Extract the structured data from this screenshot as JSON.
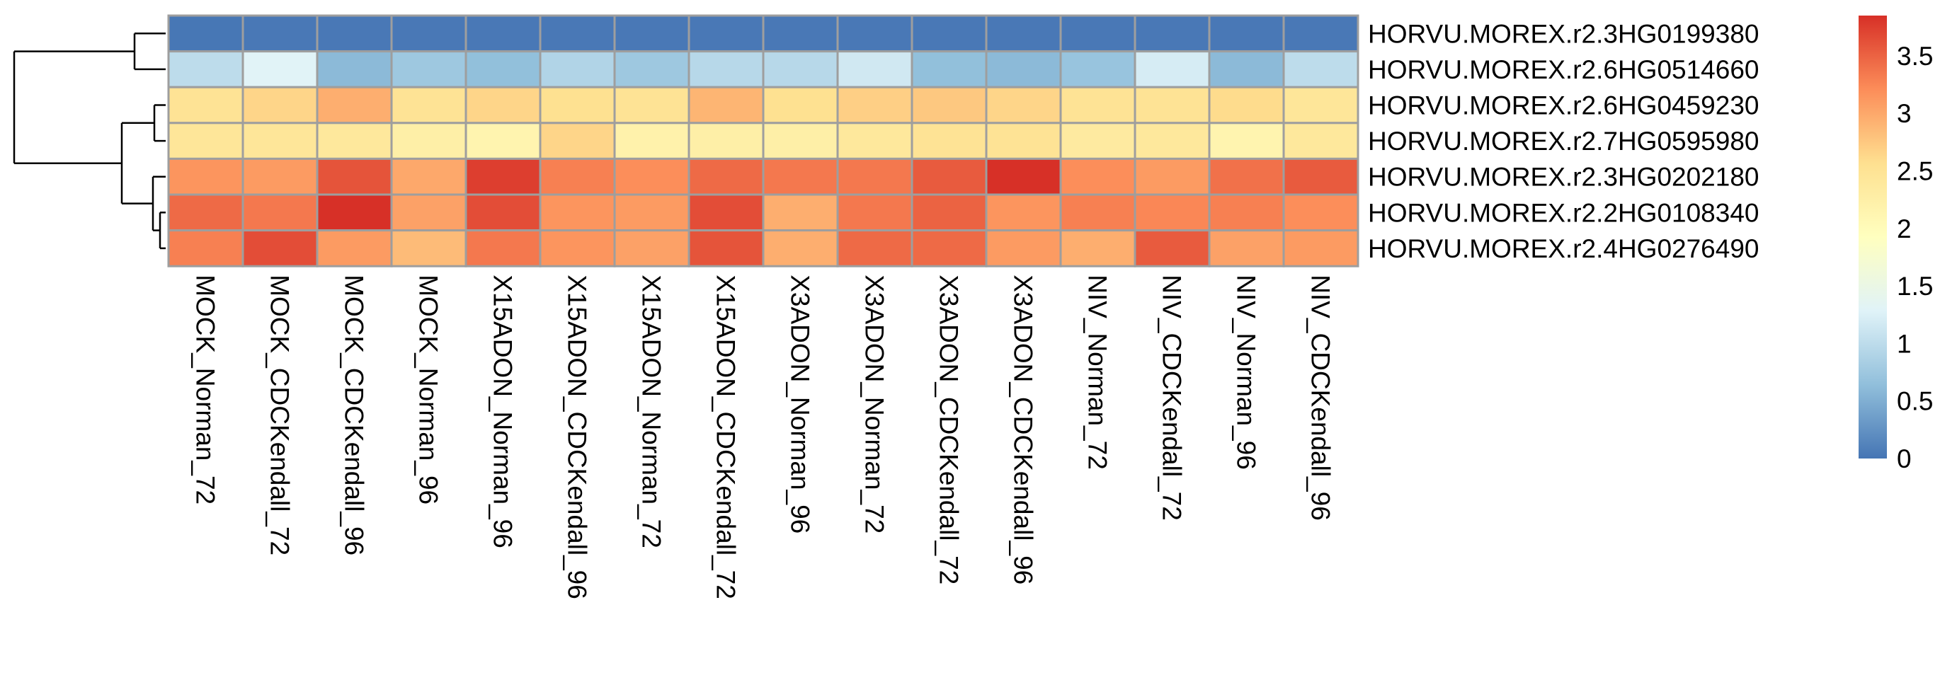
{
  "chart_data": {
    "type": "heatmap",
    "title": "",
    "xlabel": "",
    "ylabel": "",
    "row_dendrogram": true,
    "columns": [
      "MOCK_Norman_72",
      "MOCK_CDCKendall_72",
      "MOCK_CDCKendall_96",
      "MOCK_Norman_96",
      "X15ADON_Norman_96",
      "X15ADON_CDCKendall_96",
      "X15ADON_Norman_72",
      "X15ADON_CDCKendall_72",
      "X3ADON_Norman_96",
      "X3ADON_Norman_72",
      "X3ADON_CDCKendall_72",
      "X3ADON_CDCKendall_96",
      "NIV_Norman_72",
      "NIV_CDCKendall_72",
      "NIV_Norman_96",
      "NIV_CDCKendall_96"
    ],
    "rows": [
      "HORVU.MOREX.r2.3HG0199380",
      "HORVU.MOREX.r2.6HG0514660",
      "HORVU.MOREX.r2.6HG0459230",
      "HORVU.MOREX.r2.7HG0595980",
      "HORVU.MOREX.r2.3HG0202180",
      "HORVU.MOREX.r2.2HG0108340",
      "HORVU.MOREX.r2.4HG0276490"
    ],
    "values": [
      [
        0.02,
        0.03,
        0.03,
        0.03,
        0.03,
        0.03,
        0.03,
        0.03,
        0.03,
        0.03,
        0.03,
        0.03,
        0.03,
        0.03,
        0.03,
        0.03
      ],
      [
        1.0,
        1.3,
        0.6,
        0.75,
        0.65,
        0.9,
        0.75,
        0.95,
        0.95,
        1.15,
        0.65,
        0.6,
        0.7,
        1.2,
        0.6,
        1.0
      ],
      [
        2.5,
        2.65,
        2.95,
        2.5,
        2.65,
        2.55,
        2.5,
        2.9,
        2.55,
        2.7,
        2.75,
        2.65,
        2.5,
        2.5,
        2.6,
        2.45
      ],
      [
        2.45,
        2.45,
        2.4,
        2.25,
        2.15,
        2.65,
        2.2,
        2.25,
        2.25,
        2.4,
        2.5,
        2.5,
        2.35,
        2.4,
        2.15,
        2.4
      ],
      [
        3.15,
        3.1,
        3.6,
        3.0,
        3.75,
        3.3,
        3.2,
        3.45,
        3.35,
        3.35,
        3.55,
        3.85,
        3.2,
        3.1,
        3.4,
        3.55
      ],
      [
        3.45,
        3.35,
        3.85,
        3.05,
        3.65,
        3.15,
        3.1,
        3.65,
        2.95,
        3.35,
        3.5,
        3.15,
        3.3,
        3.25,
        3.3,
        3.2
      ],
      [
        3.3,
        3.65,
        3.1,
        2.85,
        3.35,
        3.15,
        3.05,
        3.6,
        2.95,
        3.45,
        3.45,
        3.1,
        2.95,
        3.55,
        3.05,
        3.1
      ]
    ],
    "color_scale": {
      "min": 0,
      "max": 3.85,
      "stops": [
        "#4575b4",
        "#91bfdb",
        "#e0f3f8",
        "#ffffbf",
        "#fee090",
        "#fc8d59",
        "#d73027"
      ],
      "ticks": [
        {
          "value": 0,
          "label": "0"
        },
        {
          "value": 0.5,
          "label": "0.5"
        },
        {
          "value": 1,
          "label": "1"
        },
        {
          "value": 1.5,
          "label": "1.5"
        },
        {
          "value": 2,
          "label": "2"
        },
        {
          "value": 2.5,
          "label": "2.5"
        },
        {
          "value": 3,
          "label": "3"
        },
        {
          "value": 3.5,
          "label": "3.5"
        }
      ]
    },
    "grid_color": "#9e9e9e",
    "dendrogram_color": "#000000"
  }
}
